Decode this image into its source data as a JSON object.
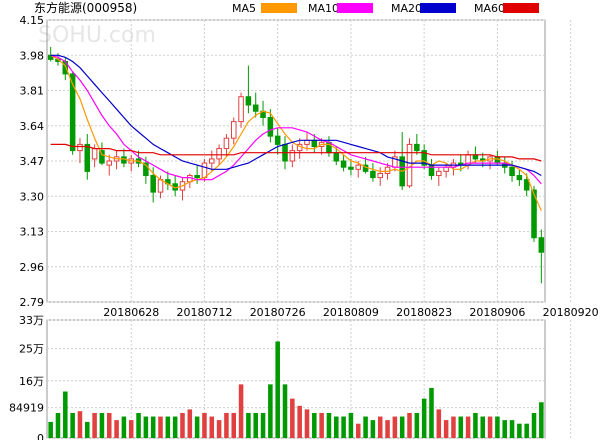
{
  "title": "东方能源(000958)",
  "watermark": "SOHU.com",
  "legend": [
    {
      "label": "MA5",
      "color": "#ff9900"
    },
    {
      "label": "MA10",
      "color": "#ff00ff"
    },
    {
      "label": "MA20",
      "color": "#0000cc"
    },
    {
      "label": "MA60",
      "color": "#e00000"
    }
  ],
  "colors": {
    "up": "#e04040",
    "down": "#009900",
    "grid": "#cfcfcf",
    "axis": "#999999"
  },
  "chart_data": [
    {
      "type": "candlestick",
      "title": "东方能源(000958)",
      "ylim": [
        2.79,
        4.15
      ],
      "yticks": [
        4.15,
        3.98,
        3.81,
        3.64,
        3.47,
        3.3,
        3.13,
        2.96,
        2.79
      ],
      "xticks": [
        {
          "label": "20180628",
          "index": 11
        },
        {
          "label": "20180712",
          "index": 21
        },
        {
          "label": "20180726",
          "index": 31
        },
        {
          "label": "20180809",
          "index": 41
        },
        {
          "label": "20180823",
          "index": 51
        },
        {
          "label": "20180906",
          "index": 61
        },
        {
          "label": "20180920",
          "index": 71
        }
      ],
      "ohlc": [
        [
          3.98,
          4.02,
          3.95,
          3.96
        ],
        [
          3.96,
          3.99,
          3.93,
          3.95
        ],
        [
          3.95,
          3.97,
          3.86,
          3.89
        ],
        [
          3.89,
          3.9,
          3.5,
          3.52
        ],
        [
          3.52,
          3.58,
          3.46,
          3.55
        ],
        [
          3.55,
          3.6,
          3.38,
          3.42
        ],
        [
          3.48,
          3.55,
          3.44,
          3.53
        ],
        [
          3.52,
          3.56,
          3.45,
          3.46
        ],
        [
          3.45,
          3.5,
          3.4,
          3.47
        ],
        [
          3.47,
          3.52,
          3.43,
          3.49
        ],
        [
          3.49,
          3.53,
          3.44,
          3.46
        ],
        [
          3.46,
          3.5,
          3.42,
          3.48
        ],
        [
          3.48,
          3.52,
          3.44,
          3.46
        ],
        [
          3.46,
          3.49,
          3.36,
          3.4
        ],
        [
          3.4,
          3.44,
          3.27,
          3.32
        ],
        [
          3.32,
          3.4,
          3.29,
          3.38
        ],
        [
          3.38,
          3.42,
          3.33,
          3.36
        ],
        [
          3.36,
          3.4,
          3.3,
          3.33
        ],
        [
          3.33,
          3.39,
          3.28,
          3.37
        ],
        [
          3.37,
          3.41,
          3.34,
          3.4
        ],
        [
          3.4,
          3.45,
          3.36,
          3.39
        ],
        [
          3.39,
          3.48,
          3.37,
          3.46
        ],
        [
          3.46,
          3.52,
          3.42,
          3.48
        ],
        [
          3.48,
          3.55,
          3.45,
          3.53
        ],
        [
          3.53,
          3.6,
          3.49,
          3.58
        ],
        [
          3.58,
          3.68,
          3.55,
          3.66
        ],
        [
          3.66,
          3.8,
          3.63,
          3.78
        ],
        [
          3.78,
          3.93,
          3.7,
          3.74
        ],
        [
          3.74,
          3.8,
          3.68,
          3.71
        ],
        [
          3.71,
          3.76,
          3.64,
          3.68
        ],
        [
          3.68,
          3.72,
          3.56,
          3.59
        ],
        [
          3.59,
          3.63,
          3.5,
          3.55
        ],
        [
          3.55,
          3.59,
          3.43,
          3.47
        ],
        [
          3.47,
          3.55,
          3.44,
          3.52
        ],
        [
          3.52,
          3.58,
          3.48,
          3.55
        ],
        [
          3.55,
          3.61,
          3.52,
          3.57
        ],
        [
          3.57,
          3.6,
          3.51,
          3.54
        ],
        [
          3.54,
          3.58,
          3.5,
          3.56
        ],
        [
          3.56,
          3.59,
          3.49,
          3.51
        ],
        [
          3.51,
          3.54,
          3.45,
          3.47
        ],
        [
          3.47,
          3.5,
          3.42,
          3.44
        ],
        [
          3.44,
          3.48,
          3.4,
          3.43
        ],
        [
          3.43,
          3.47,
          3.39,
          3.45
        ],
        [
          3.45,
          3.49,
          3.41,
          3.42
        ],
        [
          3.42,
          3.46,
          3.37,
          3.39
        ],
        [
          3.39,
          3.44,
          3.35,
          3.41
        ],
        [
          3.41,
          3.46,
          3.38,
          3.44
        ],
        [
          3.44,
          3.52,
          3.42,
          3.49
        ],
        [
          3.49,
          3.61,
          3.33,
          3.35
        ],
        [
          3.35,
          3.58,
          3.34,
          3.55
        ],
        [
          3.55,
          3.6,
          3.5,
          3.52
        ],
        [
          3.52,
          3.55,
          3.43,
          3.45
        ],
        [
          3.45,
          3.48,
          3.38,
          3.4
        ],
        [
          3.4,
          3.44,
          3.35,
          3.42
        ],
        [
          3.42,
          3.46,
          3.39,
          3.44
        ],
        [
          3.44,
          3.48,
          3.4,
          3.46
        ],
        [
          3.46,
          3.5,
          3.42,
          3.45
        ],
        [
          3.45,
          3.52,
          3.43,
          3.5
        ],
        [
          3.5,
          3.54,
          3.46,
          3.48
        ],
        [
          3.48,
          3.51,
          3.44,
          3.47
        ],
        [
          3.47,
          3.5,
          3.43,
          3.49
        ],
        [
          3.49,
          3.52,
          3.45,
          3.46
        ],
        [
          3.46,
          3.49,
          3.41,
          3.44
        ],
        [
          3.44,
          3.47,
          3.37,
          3.4
        ],
        [
          3.4,
          3.43,
          3.35,
          3.38
        ],
        [
          3.38,
          3.41,
          3.3,
          3.33
        ],
        [
          3.33,
          3.35,
          3.08,
          3.1
        ],
        [
          3.1,
          3.14,
          2.88,
          3.03
        ]
      ],
      "ma": [
        {
          "name": "MA5",
          "color": "#ff9900",
          "values": [
            3.98,
            3.96,
            3.93,
            3.84,
            3.77,
            3.67,
            3.58,
            3.5,
            3.49,
            3.48,
            3.48,
            3.47,
            3.47,
            3.45,
            3.41,
            3.38,
            3.36,
            3.34,
            3.35,
            3.37,
            3.38,
            3.39,
            3.42,
            3.45,
            3.49,
            3.54,
            3.6,
            3.66,
            3.69,
            3.71,
            3.7,
            3.65,
            3.6,
            3.56,
            3.54,
            3.53,
            3.53,
            3.55,
            3.55,
            3.53,
            3.5,
            3.47,
            3.46,
            3.44,
            3.43,
            3.42,
            3.42,
            3.43,
            3.42,
            3.44,
            3.47,
            3.47,
            3.45,
            3.47,
            3.46,
            3.43,
            3.43,
            3.45,
            3.47,
            3.47,
            3.48,
            3.48,
            3.47,
            3.45,
            3.43,
            3.4,
            3.31,
            3.23
          ]
        },
        {
          "name": "MA10",
          "color": "#ff00ff",
          "values": [
            3.98,
            3.97,
            3.95,
            3.9,
            3.86,
            3.81,
            3.75,
            3.69,
            3.64,
            3.6,
            3.55,
            3.52,
            3.49,
            3.47,
            3.45,
            3.43,
            3.41,
            3.4,
            3.39,
            3.39,
            3.38,
            3.38,
            3.38,
            3.4,
            3.42,
            3.45,
            3.49,
            3.53,
            3.57,
            3.6,
            3.62,
            3.63,
            3.63,
            3.63,
            3.62,
            3.61,
            3.59,
            3.57,
            3.56,
            3.54,
            3.52,
            3.5,
            3.49,
            3.48,
            3.47,
            3.46,
            3.45,
            3.44,
            3.44,
            3.44,
            3.44,
            3.44,
            3.44,
            3.44,
            3.44,
            3.44,
            3.45,
            3.46,
            3.46,
            3.46,
            3.46,
            3.46,
            3.46,
            3.45,
            3.44,
            3.43,
            3.4,
            3.36
          ]
        },
        {
          "name": "MA20",
          "color": "#0000cc",
          "values": [
            3.98,
            3.98,
            3.97,
            3.95,
            3.92,
            3.88,
            3.84,
            3.8,
            3.76,
            3.72,
            3.68,
            3.64,
            3.61,
            3.58,
            3.55,
            3.53,
            3.51,
            3.49,
            3.47,
            3.46,
            3.45,
            3.44,
            3.43,
            3.43,
            3.43,
            3.44,
            3.45,
            3.46,
            3.48,
            3.5,
            3.52,
            3.54,
            3.55,
            3.56,
            3.57,
            3.57,
            3.57,
            3.57,
            3.57,
            3.57,
            3.56,
            3.55,
            3.54,
            3.53,
            3.52,
            3.51,
            3.49,
            3.48,
            3.47,
            3.46,
            3.46,
            3.46,
            3.45,
            3.45,
            3.45,
            3.45,
            3.45,
            3.45,
            3.45,
            3.45,
            3.45,
            3.45,
            3.45,
            3.45,
            3.44,
            3.43,
            3.42,
            3.4
          ]
        },
        {
          "name": "MA60",
          "color": "#e00000",
          "values": [
            3.55,
            3.55,
            3.55,
            3.54,
            3.54,
            3.54,
            3.53,
            3.53,
            3.53,
            3.52,
            3.52,
            3.52,
            3.51,
            3.51,
            3.51,
            3.5,
            3.5,
            3.5,
            3.5,
            3.5,
            3.5,
            3.5,
            3.5,
            3.5,
            3.5,
            3.5,
            3.51,
            3.51,
            3.51,
            3.51,
            3.51,
            3.51,
            3.51,
            3.51,
            3.51,
            3.51,
            3.51,
            3.51,
            3.51,
            3.51,
            3.51,
            3.51,
            3.51,
            3.51,
            3.51,
            3.51,
            3.51,
            3.51,
            3.51,
            3.51,
            3.51,
            3.51,
            3.5,
            3.5,
            3.5,
            3.5,
            3.5,
            3.5,
            3.5,
            3.5,
            3.5,
            3.49,
            3.49,
            3.49,
            3.48,
            3.48,
            3.48,
            3.47
          ]
        }
      ]
    },
    {
      "type": "bar",
      "title": "",
      "ylim": [
        0,
        330000
      ],
      "yticks": [
        {
          "label": "33万",
          "value": 330000
        },
        {
          "label": "25万",
          "value": 250000
        },
        {
          "label": "16万",
          "value": 160000
        },
        {
          "label": "84919",
          "value": 84919
        },
        {
          "label": "0",
          "value": 0
        }
      ],
      "values": [
        45000,
        70000,
        130000,
        70000,
        75000,
        45000,
        70000,
        70000,
        70000,
        50000,
        60000,
        50000,
        70000,
        60000,
        60000,
        60000,
        60000,
        60000,
        70000,
        80000,
        60000,
        70000,
        60000,
        50000,
        70000,
        70000,
        150000,
        70000,
        70000,
        70000,
        150000,
        270000,
        150000,
        110000,
        90000,
        80000,
        70000,
        70000,
        70000,
        60000,
        60000,
        70000,
        40000,
        60000,
        50000,
        60000,
        50000,
        60000,
        60000,
        70000,
        70000,
        110000,
        140000,
        80000,
        50000,
        60000,
        60000,
        60000,
        70000,
        60000,
        60000,
        60000,
        50000,
        50000,
        40000,
        40000,
        70000,
        100000
      ],
      "up": [
        0,
        0,
        0,
        0,
        1,
        0,
        1,
        0,
        1,
        1,
        0,
        1,
        0,
        0,
        0,
        1,
        0,
        0,
        1,
        1,
        0,
        1,
        1,
        1,
        1,
        1,
        1,
        0,
        0,
        0,
        0,
        0,
        0,
        1,
        1,
        1,
        0,
        1,
        0,
        0,
        0,
        0,
        1,
        0,
        0,
        1,
        1,
        1,
        0,
        1,
        0,
        0,
        0,
        1,
        1,
        1,
        0,
        1,
        0,
        0,
        1,
        0,
        0,
        0,
        0,
        0,
        0,
        0
      ]
    }
  ]
}
